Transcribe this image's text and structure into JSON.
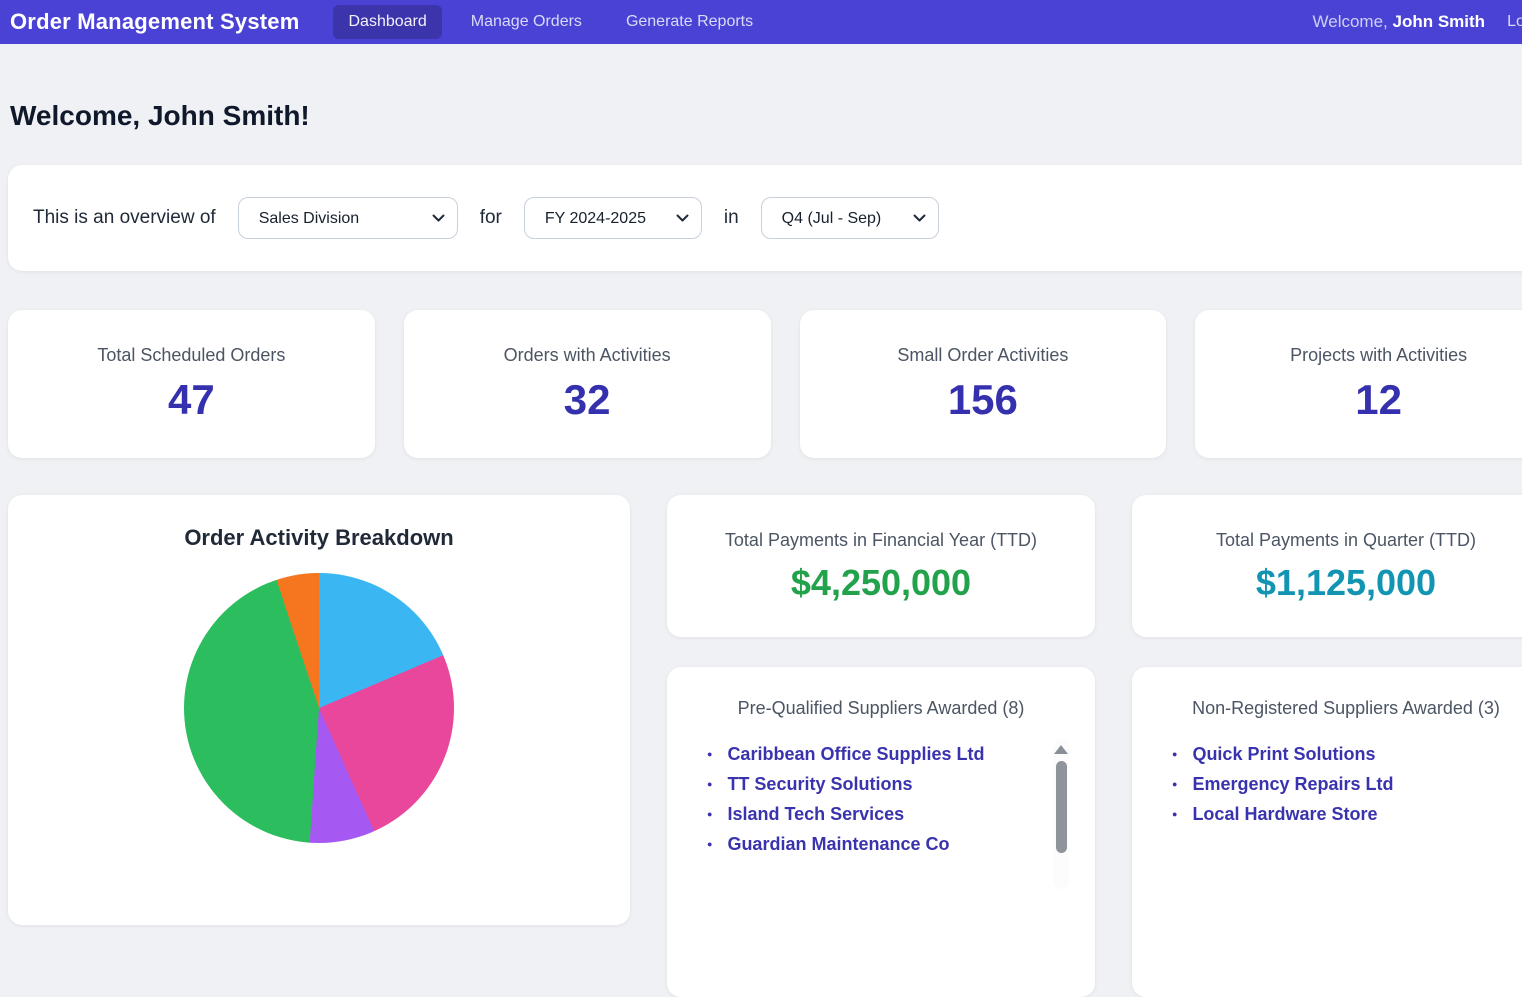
{
  "header": {
    "app_title": "Order Management System",
    "nav": [
      {
        "label": "Dashboard",
        "active": true
      },
      {
        "label": "Manage Orders",
        "active": false
      },
      {
        "label": "Generate Reports",
        "active": false
      }
    ],
    "welcome_prefix": "Welcome,",
    "user_name": "John Smith",
    "logout_label": "Logout",
    "bar_color": "#4a41d5",
    "active_tab_color": "#3b34ab"
  },
  "page": {
    "greeting": "Welcome, John Smith!"
  },
  "filter_bar": {
    "prefix": "This is an overview of",
    "division": {
      "selected": "Sales Division"
    },
    "connector_1": "for",
    "fiscal_year": {
      "selected": "FY 2024-2025"
    },
    "connector_2": "in",
    "quarter": {
      "selected": "Q4 (Jul - Sep)"
    }
  },
  "stats": [
    {
      "label": "Total Scheduled Orders",
      "value": "47"
    },
    {
      "label": "Orders with Activities",
      "value": "32"
    },
    {
      "label": "Small Order Activities",
      "value": "156"
    },
    {
      "label": "Projects with Activities",
      "value": "12"
    }
  ],
  "chart_data": {
    "type": "pie",
    "title": "Order Activity Breakdown",
    "labels_visible": false,
    "legend_position": "none",
    "start_angle_deg": 0,
    "direction": "clockwise",
    "segments": [
      {
        "name": "blue-segment",
        "color": "#3ab7f3",
        "percent": 18.6
      },
      {
        "name": "pink-segment",
        "color": "#e8479b",
        "percent": 24.7
      },
      {
        "name": "purple-segment",
        "color": "#a559f2",
        "percent": 7.8
      },
      {
        "name": "green-segment",
        "color": "#2cbd5e",
        "percent": 43.8
      },
      {
        "name": "orange-segment",
        "color": "#f5761e",
        "percent": 5.1
      }
    ]
  },
  "payments": {
    "financial_year": {
      "label": "Total Payments in Financial Year (TTD)",
      "amount": "$4,250,000",
      "color": "#23a24c"
    },
    "quarter": {
      "label": "Total Payments in Quarter (TTD)",
      "amount": "$1,125,000",
      "color": "#1295b2"
    }
  },
  "suppliers": {
    "prequalified": {
      "title": "Pre-Qualified Suppliers Awarded (8)",
      "items": [
        "Caribbean Office Supplies Ltd",
        "TT Security Solutions",
        "Island Tech Services",
        "Guardian Maintenance Co"
      ],
      "has_scrollbar": true
    },
    "non_registered": {
      "title": "Non-Registered Suppliers Awarded (3)",
      "items": [
        "Quick Print Solutions",
        "Emergency Repairs Ltd",
        "Local Hardware Store"
      ],
      "has_scrollbar": false
    }
  }
}
